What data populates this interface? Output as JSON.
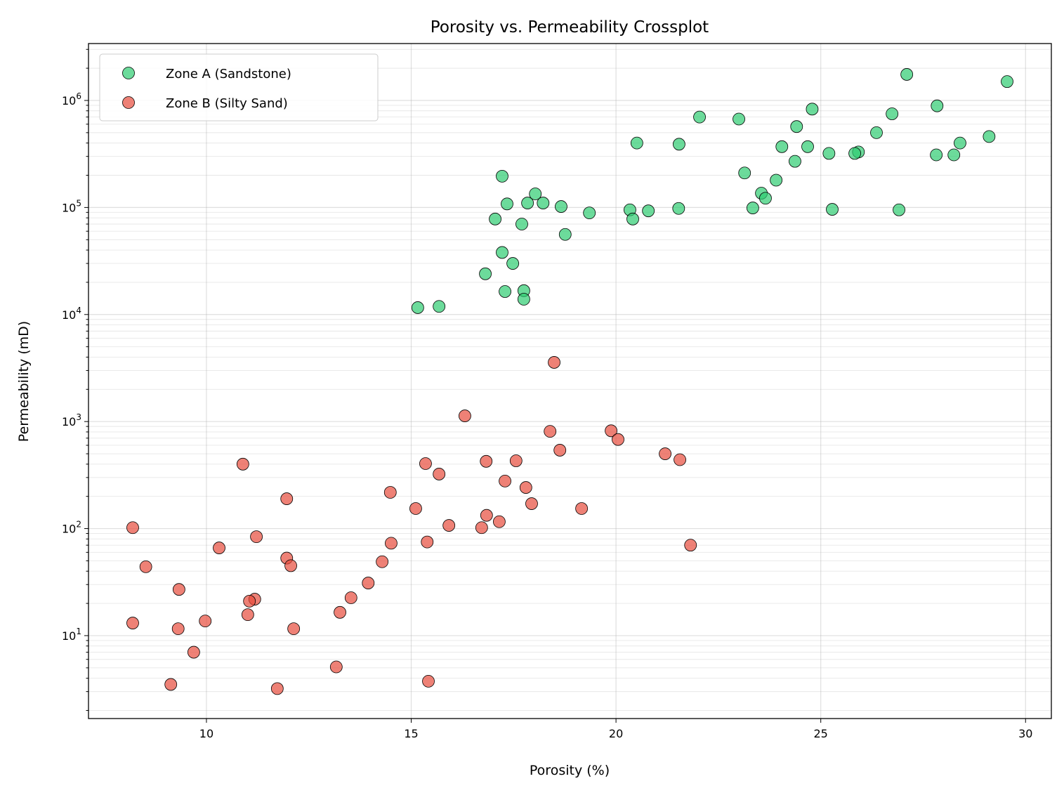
{
  "chart_data": {
    "type": "scatter",
    "title": "Porosity vs. Permeability Crossplot",
    "xlabel": "Porosity (%)",
    "ylabel": "Permeability (mD)",
    "xlim": [
      7.12,
      30.63
    ],
    "ylim": [
      1.68,
      3400000
    ],
    "yscale": "log",
    "grid": true,
    "legend_position": "top-left",
    "x_ticks": [
      10,
      15,
      20,
      25,
      30
    ],
    "y_ticks": [
      {
        "base": "10",
        "exp": "1",
        "value": 10
      },
      {
        "base": "10",
        "exp": "2",
        "value": 100
      },
      {
        "base": "10",
        "exp": "3",
        "value": 1000
      },
      {
        "base": "10",
        "exp": "4",
        "value": 10000
      },
      {
        "base": "10",
        "exp": "5",
        "value": 100000
      },
      {
        "base": "10",
        "exp": "6",
        "value": 1000000
      }
    ],
    "series": [
      {
        "name": "Zone A (Sandstone)",
        "color": "#2ecc71",
        "points": [
          [
            27.1,
            1750000
          ],
          [
            29.55,
            1500000
          ],
          [
            27.84,
            890000
          ],
          [
            24.79,
            830000
          ],
          [
            26.74,
            750000
          ],
          [
            22.04,
            700000
          ],
          [
            23.0,
            670000
          ],
          [
            24.41,
            570000
          ],
          [
            26.36,
            500000
          ],
          [
            29.11,
            460000
          ],
          [
            20.51,
            400000
          ],
          [
            28.4,
            400000
          ],
          [
            21.54,
            390000
          ],
          [
            24.05,
            370000
          ],
          [
            24.68,
            370000
          ],
          [
            25.92,
            330000
          ],
          [
            25.2,
            320000
          ],
          [
            25.83,
            320000
          ],
          [
            27.82,
            310000
          ],
          [
            28.25,
            310000
          ],
          [
            24.37,
            270000
          ],
          [
            23.14,
            210000
          ],
          [
            17.22,
            196000
          ],
          [
            23.91,
            180000
          ],
          [
            23.55,
            136000
          ],
          [
            18.03,
            134000
          ],
          [
            23.65,
            122000
          ],
          [
            17.34,
            108000
          ],
          [
            17.84,
            110000
          ],
          [
            18.22,
            110000
          ],
          [
            18.66,
            102000
          ],
          [
            23.34,
            99000
          ],
          [
            21.53,
            98000
          ],
          [
            25.28,
            96000
          ],
          [
            20.34,
            95000
          ],
          [
            26.91,
            95000
          ],
          [
            20.79,
            93000
          ],
          [
            19.35,
            89000
          ],
          [
            17.05,
            78000
          ],
          [
            20.41,
            78000
          ],
          [
            17.7,
            70000
          ],
          [
            18.76,
            56000
          ],
          [
            17.22,
            38000
          ],
          [
            17.48,
            30000
          ],
          [
            16.81,
            24000
          ],
          [
            17.29,
            16400
          ],
          [
            17.75,
            16700
          ],
          [
            17.75,
            13900
          ],
          [
            15.16,
            11600
          ],
          [
            15.68,
            11900
          ]
        ]
      },
      {
        "name": "Zone B (Silty Sand)",
        "color": "#e74c3c",
        "points": [
          [
            18.49,
            3570
          ],
          [
            16.31,
            1130
          ],
          [
            18.39,
            810
          ],
          [
            19.88,
            820
          ],
          [
            20.05,
            680
          ],
          [
            18.63,
            540
          ],
          [
            21.2,
            500
          ],
          [
            21.56,
            440
          ],
          [
            10.89,
            400
          ],
          [
            15.35,
            405
          ],
          [
            16.83,
            425
          ],
          [
            17.56,
            430
          ],
          [
            15.68,
            323
          ],
          [
            17.29,
            278
          ],
          [
            17.8,
            242
          ],
          [
            14.49,
            218
          ],
          [
            11.96,
            190
          ],
          [
            17.94,
            171
          ],
          [
            15.11,
            154
          ],
          [
            19.16,
            154
          ],
          [
            16.84,
            133
          ],
          [
            17.15,
            116
          ],
          [
            15.92,
            107
          ],
          [
            16.72,
            102
          ],
          [
            8.2,
            102
          ],
          [
            11.22,
            84
          ],
          [
            14.51,
            73
          ],
          [
            15.39,
            75
          ],
          [
            21.82,
            70
          ],
          [
            10.31,
            66
          ],
          [
            11.96,
            53
          ],
          [
            14.29,
            49
          ],
          [
            8.52,
            44
          ],
          [
            12.06,
            45
          ],
          [
            13.95,
            31
          ],
          [
            9.33,
            27
          ],
          [
            13.53,
            22.6
          ],
          [
            11.18,
            21.9
          ],
          [
            11.05,
            21
          ],
          [
            13.26,
            16.5
          ],
          [
            11.01,
            15.7
          ],
          [
            9.97,
            13.7
          ],
          [
            8.2,
            13.1
          ],
          [
            9.31,
            11.6
          ],
          [
            12.13,
            11.6
          ],
          [
            9.69,
            7.0
          ],
          [
            13.17,
            5.1
          ],
          [
            15.42,
            3.75
          ],
          [
            9.13,
            3.5
          ],
          [
            11.73,
            3.2
          ]
        ]
      }
    ]
  }
}
